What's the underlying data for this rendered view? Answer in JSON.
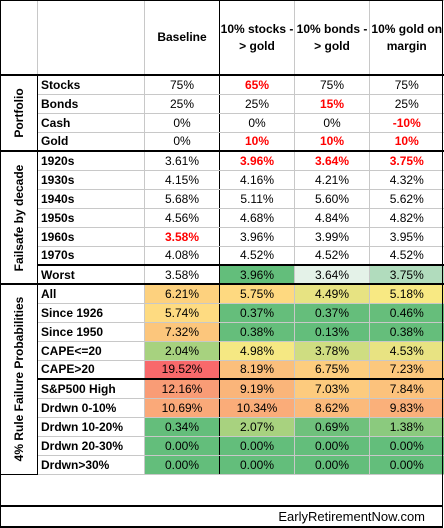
{
  "columns": [
    "Baseline",
    "10% stocks -> gold",
    "10% bonds -> gold",
    "10% gold on margin"
  ],
  "sections": [
    {
      "title": "Portfolio",
      "rows": [
        {
          "label": "Stocks",
          "values": [
            "75%",
            "65%",
            "75%",
            "75%"
          ],
          "red": [
            false,
            true,
            false,
            false
          ]
        },
        {
          "label": "Bonds",
          "values": [
            "25%",
            "25%",
            "15%",
            "25%"
          ],
          "red": [
            false,
            false,
            true,
            false
          ]
        },
        {
          "label": "Cash",
          "values": [
            "0%",
            "0%",
            "0%",
            "-10%"
          ],
          "red": [
            false,
            false,
            false,
            true
          ]
        },
        {
          "label": "Gold",
          "values": [
            "0%",
            "10%",
            "10%",
            "10%"
          ],
          "red": [
            false,
            true,
            true,
            true
          ]
        }
      ]
    },
    {
      "title": "Failsafe by decade",
      "rows": [
        {
          "label": "1920s",
          "values": [
            "3.61%",
            "3.96%",
            "3.64%",
            "3.75%"
          ],
          "red": [
            false,
            true,
            true,
            true
          ]
        },
        {
          "label": "1930s",
          "values": [
            "4.15%",
            "4.16%",
            "4.21%",
            "4.32%"
          ],
          "red": [
            false,
            false,
            false,
            false
          ]
        },
        {
          "label": "1940s",
          "values": [
            "5.68%",
            "5.11%",
            "5.60%",
            "5.62%"
          ],
          "red": [
            false,
            false,
            false,
            false
          ]
        },
        {
          "label": "1950s",
          "values": [
            "4.56%",
            "4.68%",
            "4.84%",
            "4.82%"
          ],
          "red": [
            false,
            false,
            false,
            false
          ]
        },
        {
          "label": "1960s",
          "values": [
            "3.58%",
            "3.96%",
            "3.99%",
            "3.95%"
          ],
          "red": [
            true,
            false,
            false,
            false
          ]
        },
        {
          "label": "1970s",
          "values": [
            "4.08%",
            "4.52%",
            "4.52%",
            "4.52%"
          ],
          "red": [
            false,
            false,
            false,
            false
          ]
        },
        {
          "label": "Worst",
          "values": [
            "3.58%",
            "3.96%",
            "3.64%",
            "3.75%"
          ],
          "red": [
            false,
            false,
            false,
            false
          ],
          "colors": [
            "#ffffff",
            "#63be7b",
            "#e4f2e8",
            "#b1dcbd"
          ]
        }
      ]
    },
    {
      "title": "4% Rule Failure Probabilities",
      "rows": [
        {
          "label": "All",
          "values": [
            "6.21%",
            "5.75%",
            "4.49%",
            "5.18%"
          ],
          "colors": [
            "#fdd17e",
            "#fed980",
            "#e7e382",
            "#f8e983"
          ]
        },
        {
          "label": "Since 1926",
          "values": [
            "5.74%",
            "0.37%",
            "0.37%",
            "0.46%"
          ],
          "colors": [
            "#fedb81",
            "#65be7b",
            "#65be7b",
            "#66be7b"
          ]
        },
        {
          "label": "Since 1950",
          "values": [
            "7.32%",
            "0.38%",
            "0.13%",
            "0.38%"
          ],
          "colors": [
            "#fcc67c",
            "#65be7b",
            "#63be7b",
            "#65be7b"
          ]
        },
        {
          "label": "CAPE<=20",
          "values": [
            "2.04%",
            "4.98%",
            "3.78%",
            "4.53%"
          ],
          "colors": [
            "#a7d27f",
            "#f5e883",
            "#cfdd81",
            "#e8e382"
          ]
        },
        {
          "label": "CAPE>20",
          "values": [
            "19.52%",
            "8.19%",
            "6.75%",
            "7.23%"
          ],
          "colors": [
            "#f8696b",
            "#fbbf7c",
            "#fdcd7e",
            "#fcc87d"
          ]
        },
        {
          "label": "S&P500 High",
          "values": [
            "12.16%",
            "9.19%",
            "7.03%",
            "7.84%"
          ],
          "colors": [
            "#f99c76",
            "#fab57a",
            "#fdcb7e",
            "#fcc27c"
          ]
        },
        {
          "label": "Drdwn 0-10%",
          "values": [
            "10.69%",
            "10.34%",
            "8.62%",
            "9.83%"
          ],
          "colors": [
            "#faa979",
            "#faac79",
            "#fbba7b",
            "#fab07a"
          ]
        },
        {
          "label": "Drdwn 10-20%",
          "values": [
            "0.34%",
            "2.07%",
            "0.69%",
            "1.38%"
          ],
          "colors": [
            "#64be7b",
            "#a8d27f",
            "#6fc17c",
            "#8bca7e"
          ]
        },
        {
          "label": "Drdwn 20-30%",
          "values": [
            "0.00%",
            "0.00%",
            "0.00%",
            "0.00%"
          ],
          "colors": [
            "#63be7b",
            "#63be7b",
            "#63be7b",
            "#63be7b"
          ]
        },
        {
          "label": "Drdwn>30%",
          "values": [
            "0.00%",
            "0.00%",
            "0.00%",
            "0.00%"
          ],
          "colors": [
            "#63be7b",
            "#63be7b",
            "#63be7b",
            "#63be7b"
          ]
        }
      ]
    }
  ],
  "footer": "EarlyRetirementNow.com"
}
